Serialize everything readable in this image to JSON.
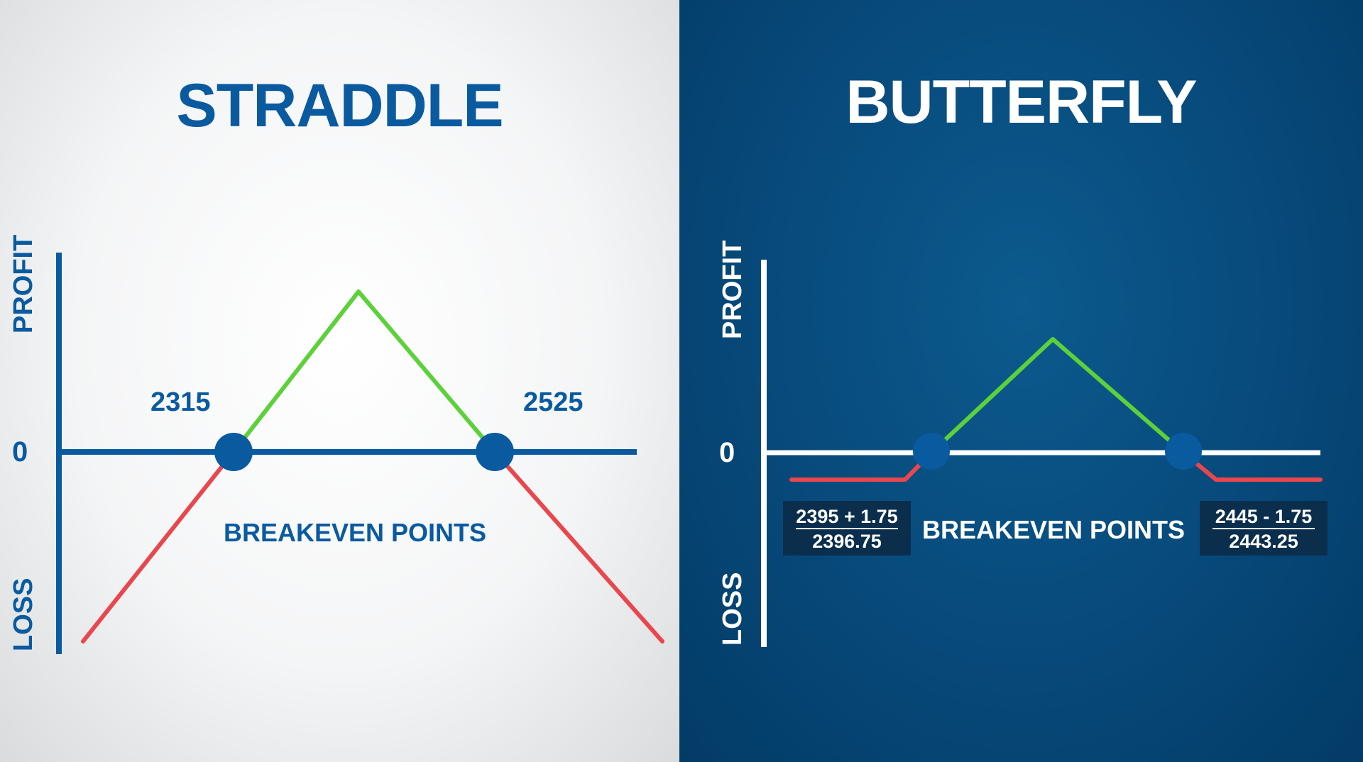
{
  "straddle": {
    "title": "STRADDLE",
    "axis_profit": "PROFIT",
    "axis_loss": "LOSS",
    "zero": "0",
    "breakeven_label": "BREAKEVEN POINTS",
    "breakeven_low": "2315",
    "breakeven_high": "2525"
  },
  "butterfly": {
    "title": "BUTTERFLY",
    "axis_profit": "PROFIT",
    "axis_loss": "LOSS",
    "zero": "0",
    "breakeven_label": "BREAKEVEN POINTS",
    "low_calc": {
      "expr": "2395 + 1.75",
      "result": "2396.75"
    },
    "high_calc": {
      "expr": "2445 - 1.75",
      "result": "2443.25"
    }
  },
  "colors": {
    "profit_line": "#5cd13a",
    "loss_line": "#e8474d",
    "straddle_axis": "#0a5aa0",
    "butterfly_axis": "#ffffff",
    "breakeven_dot": "#0a5aa0"
  }
}
